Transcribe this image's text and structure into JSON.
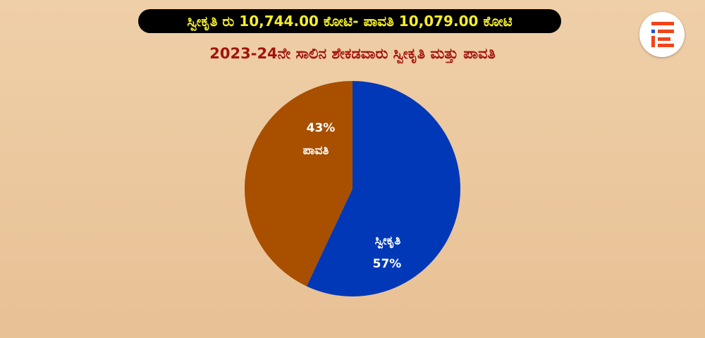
{
  "header": {
    "banner": "ಸ್ವೀಕೃತಿ ರು 10,744.00 ಕೋಟಿ- ಪಾವತಿ 10,079.00 ಕೋಟಿ",
    "logo": "IE"
  },
  "chart_data": {
    "type": "pie",
    "title": "2023-24ನೇ ಸಾಲಿನ ಶೇಕಡವಾರು ಸ್ವೀಕೃತಿ ಮತ್ತು ಪಾವತಿ",
    "slices": [
      {
        "label": "ಸ್ವೀಕೃತಿ",
        "value": 57,
        "value_label": "57%",
        "color": "#0038b8"
      },
      {
        "label": "ಪಾವತಿ",
        "value": 43,
        "value_label": "43%",
        "color": "#a84f00"
      }
    ]
  }
}
